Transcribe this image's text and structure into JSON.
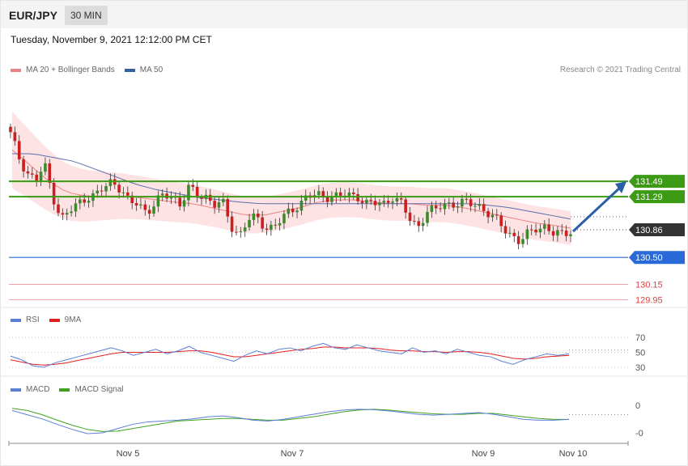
{
  "header": {
    "symbol": "EUR/JPY",
    "timeframe": "30 MIN"
  },
  "datetime": "Tuesday, November 9, 2021 12:12:00 PM CET",
  "credit": "Research © 2021 Trading Central",
  "legends": {
    "price": [
      {
        "label": "MA 20 + Bollinger Bands",
        "color": "#f08080"
      },
      {
        "label": "MA 50",
        "color": "#3a5fa0"
      }
    ],
    "rsi": [
      {
        "label": "RSI",
        "color": "#5b7fd6"
      },
      {
        "label": "9MA",
        "color": "#e0201f"
      }
    ],
    "macd": [
      {
        "label": "MACD",
        "color": "#5b7fd6"
      },
      {
        "label": "MACD Signal",
        "color": "#3fa31f"
      }
    ]
  },
  "chart_data": [
    {
      "type": "candlestick",
      "panel": "price",
      "levels": [
        {
          "value": 131.49,
          "label": "131.49",
          "kind": "resistance",
          "color": "#3d9a14"
        },
        {
          "value": 131.29,
          "label": "131.29",
          "kind": "resistance",
          "color": "#3d9a14"
        },
        {
          "value": 130.86,
          "label": "130.86",
          "kind": "current",
          "color": "#333333"
        },
        {
          "value": 130.5,
          "label": "130.50",
          "kind": "pivot",
          "color": "#2a6ad8"
        },
        {
          "value": 130.15,
          "label": "130.15",
          "kind": "support",
          "color": "#e04040"
        },
        {
          "value": 129.95,
          "label": "129.95",
          "kind": "support",
          "color": "#e04040"
        }
      ],
      "x_ticks": [
        "Nov 5",
        "Nov 7",
        "Nov 9",
        "Nov 10"
      ],
      "close_path": [
        132.1,
        131.8,
        131.6,
        131.5,
        131.7,
        131.3,
        131.0,
        131.1,
        131.2,
        131.3,
        131.3,
        131.4,
        131.5,
        131.4,
        131.2,
        131.2,
        131.1,
        131.2,
        131.3,
        131.3,
        131.2,
        131.4,
        131.3,
        131.3,
        131.2,
        131.2,
        130.9,
        130.8,
        131.0,
        131.0,
        130.9,
        130.9,
        131.0,
        131.1,
        131.2,
        131.3,
        131.3,
        131.3,
        131.3,
        131.3,
        131.3,
        131.3,
        131.2,
        131.2,
        131.2,
        131.3,
        131.2,
        131.0,
        130.9,
        131.1,
        131.1,
        131.2,
        131.2,
        131.2,
        131.2,
        131.2,
        131.1,
        131.0,
        130.9,
        130.8,
        130.7,
        130.8,
        130.9,
        130.9,
        130.8,
        130.8,
        130.86
      ],
      "ma20_path": [
        131.9,
        131.7,
        131.5,
        131.35,
        131.3,
        131.3,
        131.3,
        131.28,
        131.25,
        131.22,
        131.2,
        131.15,
        131.1,
        131.05,
        131.05,
        131.1,
        131.15,
        131.22,
        131.25,
        131.25,
        131.22,
        131.2,
        131.2,
        131.18,
        131.18,
        131.15,
        131.1,
        131.05,
        131.0,
        130.95,
        130.92,
        130.88
      ],
      "ma50_path": [
        131.85,
        131.85,
        131.8,
        131.75,
        131.65,
        131.55,
        131.45,
        131.38,
        131.33,
        131.28,
        131.25,
        131.22,
        131.2,
        131.2,
        131.2,
        131.2,
        131.2,
        131.2,
        131.2,
        131.2,
        131.2,
        131.2,
        131.2,
        131.18,
        131.15,
        131.1,
        131.05,
        131.0
      ],
      "arrow": {
        "from": 130.86,
        "to": 131.49,
        "color": "#2a5fa8"
      }
    },
    {
      "type": "line",
      "panel": "rsi",
      "y_ticks": [
        70,
        50,
        30
      ],
      "series": [
        {
          "name": "RSI",
          "values": [
            45,
            40,
            32,
            30,
            36,
            40,
            44,
            48,
            52,
            56,
            52,
            46,
            50,
            54,
            48,
            52,
            58,
            50,
            46,
            42,
            38,
            46,
            52,
            48,
            54,
            56,
            52,
            58,
            62,
            56,
            54,
            60,
            56,
            52,
            50,
            48,
            56,
            50,
            52,
            48,
            54,
            50,
            46,
            44,
            38,
            34,
            40,
            44,
            48,
            46,
            48
          ]
        },
        {
          "name": "9MA",
          "values": [
            40,
            37,
            34,
            33,
            34,
            36,
            39,
            42,
            45,
            48,
            50,
            50,
            50,
            50,
            50,
            51,
            52,
            52,
            50,
            47,
            44,
            44,
            46,
            48,
            50,
            52,
            54,
            55,
            57,
            57,
            56,
            56,
            56,
            55,
            53,
            52,
            52,
            51,
            51,
            50,
            51,
            51,
            50,
            48,
            45,
            42,
            41,
            42,
            44,
            45,
            46
          ]
        }
      ]
    },
    {
      "type": "line",
      "panel": "macd",
      "y_ticks": [
        "0",
        "-0"
      ],
      "series": [
        {
          "name": "MACD",
          "values": [
            0.05,
            -0.05,
            -0.15,
            -0.28,
            -0.4,
            -0.5,
            -0.48,
            -0.38,
            -0.28,
            -0.22,
            -0.2,
            -0.18,
            -0.15,
            -0.1,
            -0.08,
            -0.12,
            -0.18,
            -0.2,
            -0.16,
            -0.1,
            -0.04,
            0.02,
            0.06,
            0.08,
            0.07,
            0.04,
            0.0,
            -0.04,
            -0.06,
            -0.04,
            -0.02,
            0.0,
            -0.04,
            -0.1,
            -0.16,
            -0.18,
            -0.18,
            -0.16
          ]
        },
        {
          "name": "MACD Signal",
          "values": [
            0.1,
            0.05,
            -0.05,
            -0.18,
            -0.3,
            -0.4,
            -0.45,
            -0.44,
            -0.38,
            -0.32,
            -0.26,
            -0.2,
            -0.18,
            -0.16,
            -0.14,
            -0.14,
            -0.16,
            -0.18,
            -0.18,
            -0.14,
            -0.1,
            -0.04,
            0.02,
            0.06,
            0.08,
            0.06,
            0.03,
            0.0,
            -0.03,
            -0.04,
            -0.04,
            -0.02,
            -0.02,
            -0.06,
            -0.1,
            -0.14,
            -0.16,
            -0.16
          ]
        }
      ]
    }
  ]
}
